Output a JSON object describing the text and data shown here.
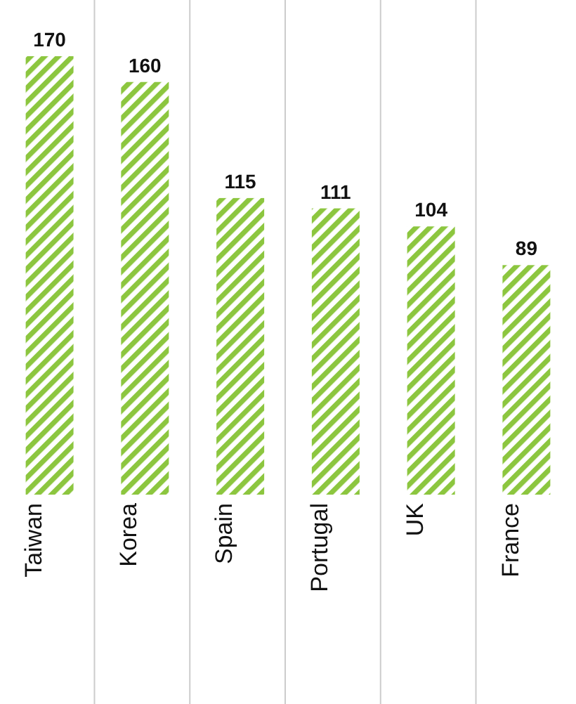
{
  "chart_data": {
    "type": "bar",
    "categories": [
      "Taiwan",
      "Korea",
      "Spain",
      "Portugal",
      "UK",
      "France"
    ],
    "values": [
      170,
      160,
      115,
      111,
      104,
      89
    ],
    "color": "#8cc63f",
    "data_labels": true,
    "grid": "x"
  }
}
